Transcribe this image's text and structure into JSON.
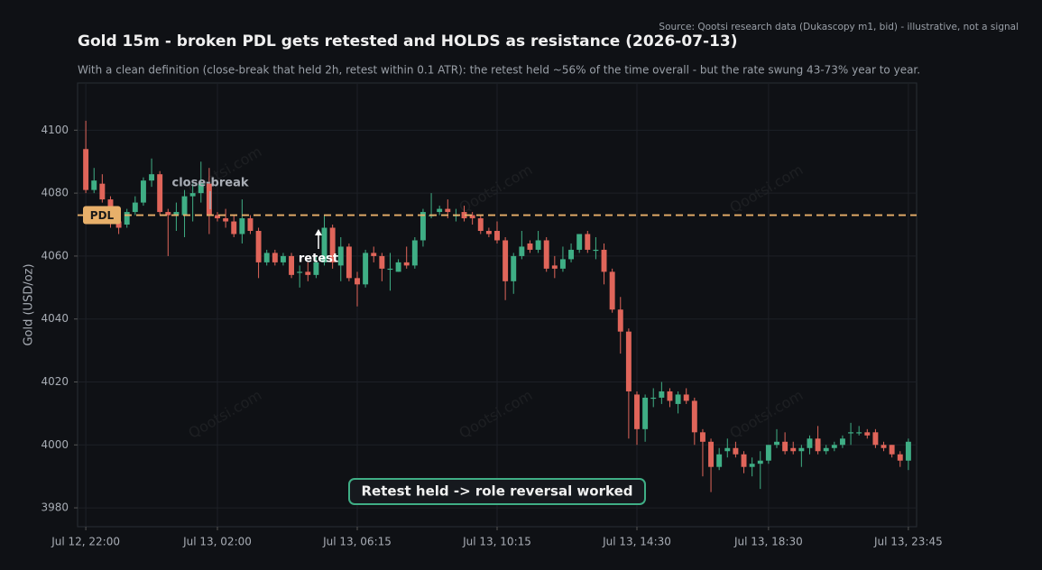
{
  "chart_data": {
    "type": "candlestick",
    "title": "Gold 15m - broken PDL gets retested and HOLDS as resistance (2026-07-13)",
    "subtitle": "With a clean definition (close-break that held 2h, retest within 0.1 ATR): the retest held ~56% of the time overall - but the rate swung 43-73% year to year.",
    "source": "Source: Qootsi research data (Dukascopy m1, bid) - illustrative, not a signal",
    "ylabel": "Gold (USD/oz)",
    "open": [
      4094,
      4081,
      4083,
      4078,
      4071,
      4070,
      4074,
      4077,
      4084,
      4086,
      4074,
      4073,
      4073,
      4079,
      4080,
      4083,
      4073,
      4072,
      4071,
      4067,
      4072,
      4068,
      4058,
      4061,
      4058,
      4060,
      4055,
      4055,
      4054,
      4058,
      4069,
      4057,
      4063,
      4053,
      4051,
      4061,
      4060,
      4056,
      4055,
      4058,
      4057,
      4065,
      4073,
      4074,
      4075,
      4073,
      4074,
      4073,
      4072,
      4068,
      4068,
      4065,
      4052,
      4060,
      4064,
      4062,
      4065,
      4057,
      4056,
      4059,
      4062,
      4067,
      4062,
      4062,
      4055,
      4043,
      4036,
      4016,
      4005,
      4015,
      4015,
      4017,
      4013,
      4016,
      4014,
      4004,
      4001,
      3993,
      3998,
      3999,
      3997,
      3993,
      3994,
      3995,
      4000,
      4001,
      3999,
      3998,
      3999,
      4002,
      3998,
      3999,
      4000,
      4004,
      4004,
      4004,
      4004,
      4000,
      4000,
      3997,
      3995
    ],
    "high": [
      4103,
      4088,
      4086,
      4079,
      4073,
      4075,
      4079,
      4085,
      4091,
      4087,
      4075,
      4077,
      4081,
      4083,
      4090,
      4088,
      4074,
      4075,
      4073,
      4078,
      4073,
      4069,
      4062,
      4062,
      4061,
      4061,
      4057,
      4058,
      4060,
      4073,
      4070,
      4066,
      4064,
      4055,
      4062,
      4063,
      4061,
      4061,
      4059,
      4063,
      4066,
      4075,
      4080,
      4076,
      4078,
      4075,
      4076,
      4074,
      4073,
      4069,
      4071,
      4066,
      4061,
      4068,
      4065,
      4068,
      4066,
      4060,
      4063,
      4064,
      4067,
      4068,
      4066,
      4064,
      4056,
      4047,
      4037,
      4017,
      4016,
      4018,
      4020,
      4018,
      4017,
      4018,
      4015,
      4005,
      4002,
      3999,
      4002,
      4001,
      3998,
      3996,
      3998,
      4000,
      4005,
      4004,
      4001,
      4000,
      4003,
      4006,
      4000,
      4001,
      4003,
      4007,
      4006,
      4005,
      4005,
      4001,
      4000,
      3998,
      4002
    ],
    "low": [
      4080,
      4080,
      4077,
      4069,
      4067,
      4069,
      4073,
      4076,
      4082,
      4073,
      4060,
      4068,
      4066,
      4071,
      4077,
      4067,
      4071,
      4069,
      4066,
      4064,
      4067,
      4053,
      4057,
      4057,
      4057,
      4053,
      4050,
      4052,
      4053,
      4057,
      4056,
      4052,
      4052,
      4044,
      4050,
      4058,
      4052,
      4049,
      4055,
      4056,
      4056,
      4063,
      4072,
      4073,
      4072,
      4071,
      4071,
      4070,
      4067,
      4066,
      4064,
      4046,
      4048,
      4059,
      4061,
      4061,
      4055,
      4053,
      4055,
      4058,
      4061,
      4061,
      4059,
      4051,
      4042,
      4029,
      4002,
      4000,
      4001,
      4012,
      4013,
      4012,
      4010,
      4013,
      4000,
      3990,
      3985,
      3992,
      3996,
      3996,
      3991,
      3990,
      3986,
      3994,
      3999,
      3997,
      3997,
      3993,
      3997,
      3997,
      3997,
      3998,
      3999,
      4000,
      4003,
      4002,
      3999,
      3998,
      3996,
      3993,
      3992
    ],
    "close": [
      4081,
      4084,
      4078,
      4071,
      4069,
      4074,
      4077,
      4084,
      4086,
      4074,
      4073,
      4074,
      4079,
      4080,
      4083,
      4073,
      4072,
      4071,
      4067,
      4072,
      4068,
      4058,
      4061,
      4058,
      4060,
      4054,
      4055,
      4054,
      4058,
      4069,
      4058,
      4063,
      4053,
      4051,
      4061,
      4060,
      4056,
      4056,
      4058,
      4057,
      4065,
      4074,
      4073,
      4075,
      4074,
      4073,
      4072,
      4072,
      4068,
      4067,
      4065,
      4052,
      4060,
      4063,
      4062,
      4065,
      4056,
      4056,
      4059,
      4062,
      4067,
      4062,
      4062,
      4055,
      4043,
      4036,
      4017,
      4005,
      4015,
      4015,
      4017,
      4014,
      4016,
      4014,
      4004,
      4001,
      3993,
      3997,
      3999,
      3997,
      3993,
      3994,
      3995,
      4000,
      4001,
      3998,
      3998,
      3999,
      4002,
      3998,
      3999,
      4000,
      4002,
      4004,
      4004,
      4003,
      4000,
      3999,
      3997,
      3995,
      4001
    ],
    "up_color": "#3fae85",
    "down_color": "#e0655a",
    "ylim": [
      3974,
      4115
    ],
    "yticks": [
      3980,
      4000,
      4020,
      4040,
      4060,
      4080,
      4100
    ],
    "xlim": [
      -1,
      101
    ],
    "xticks": [
      {
        "value": 0,
        "label": "Jul 12, 22:00"
      },
      {
        "value": 16,
        "label": "Jul 13, 02:00"
      },
      {
        "value": 33,
        "label": "Jul 13, 06:15"
      },
      {
        "value": 50,
        "label": "Jul 13, 10:15"
      },
      {
        "value": 67,
        "label": "Jul 13, 14:30"
      },
      {
        "value": 83,
        "label": "Jul 13, 18:30"
      },
      {
        "value": 100,
        "label": "Jul 13, 23:45"
      }
    ],
    "grid": true,
    "reference_line": {
      "label": "PDL",
      "value": 4073,
      "color": "#e8b06a"
    },
    "annotations": [
      "close-break",
      "retest"
    ],
    "callout": "Retest held -> role reversal worked",
    "watermark": "Qootsi.com"
  }
}
